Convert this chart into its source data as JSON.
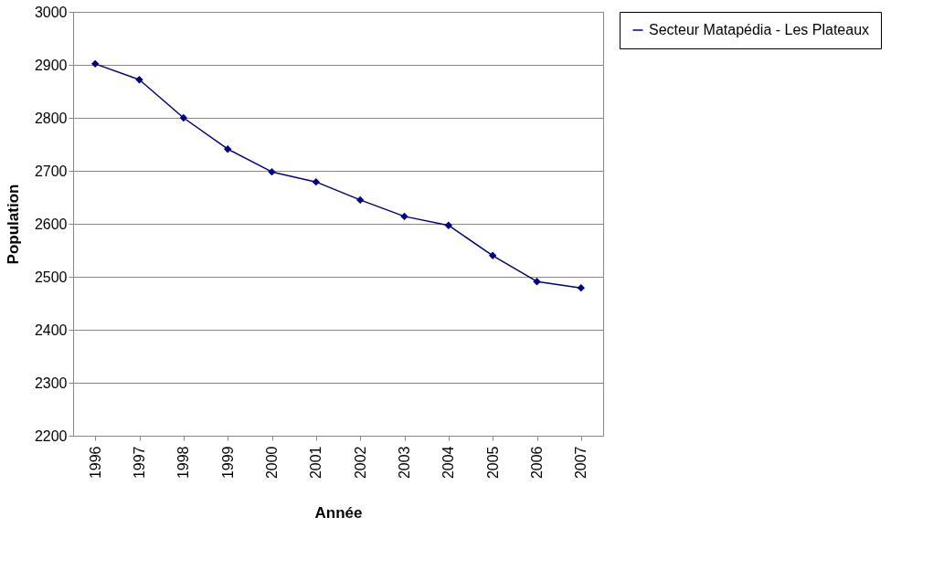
{
  "chart_data": {
    "type": "line",
    "xlabel": "Année",
    "ylabel": "Population",
    "categories": [
      "1996",
      "1997",
      "1998",
      "1999",
      "2000",
      "2001",
      "2002",
      "2003",
      "2004",
      "2005",
      "2006",
      "2007"
    ],
    "series": [
      {
        "name": "Secteur Matapédia - Les Plateaux",
        "color": "#000080",
        "values": [
          2902,
          2872,
          2800,
          2741,
          2698,
          2679,
          2645,
          2614,
          2597,
          2540,
          2491,
          2479
        ]
      }
    ],
    "ylim": [
      2200,
      3000
    ],
    "yticks": [
      2200,
      2300,
      2400,
      2500,
      2600,
      2700,
      2800,
      2900,
      3000
    ],
    "grid": "y",
    "legend": "right",
    "marker": "diamond",
    "line_style": "solid"
  }
}
